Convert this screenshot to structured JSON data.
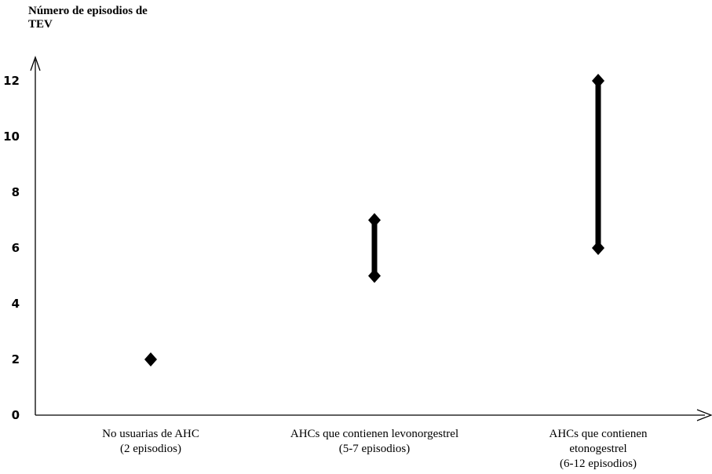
{
  "chart_data": {
    "type": "range",
    "ylabel_lines": [
      "Número de episodios de",
      "TEV"
    ],
    "ylim": [
      0,
      12.6
    ],
    "yticks": [
      "0",
      "2",
      "4",
      "6",
      "8",
      "10",
      "12"
    ],
    "categories": [
      {
        "label_lines": [
          "No usuarias de AHC",
          "(2 episodios)"
        ],
        "low": 2,
        "high": 2
      },
      {
        "label_lines": [
          "AHCs que contienen levonorgestrel",
          "(5-7 episodios)"
        ],
        "low": 5,
        "high": 7
      },
      {
        "label_lines": [
          "AHCs que contienen",
          "etonogestrel",
          "(6-12 episodios)"
        ],
        "low": 6,
        "high": 12
      }
    ],
    "grid": false,
    "legend": "none",
    "color": "#000000"
  }
}
